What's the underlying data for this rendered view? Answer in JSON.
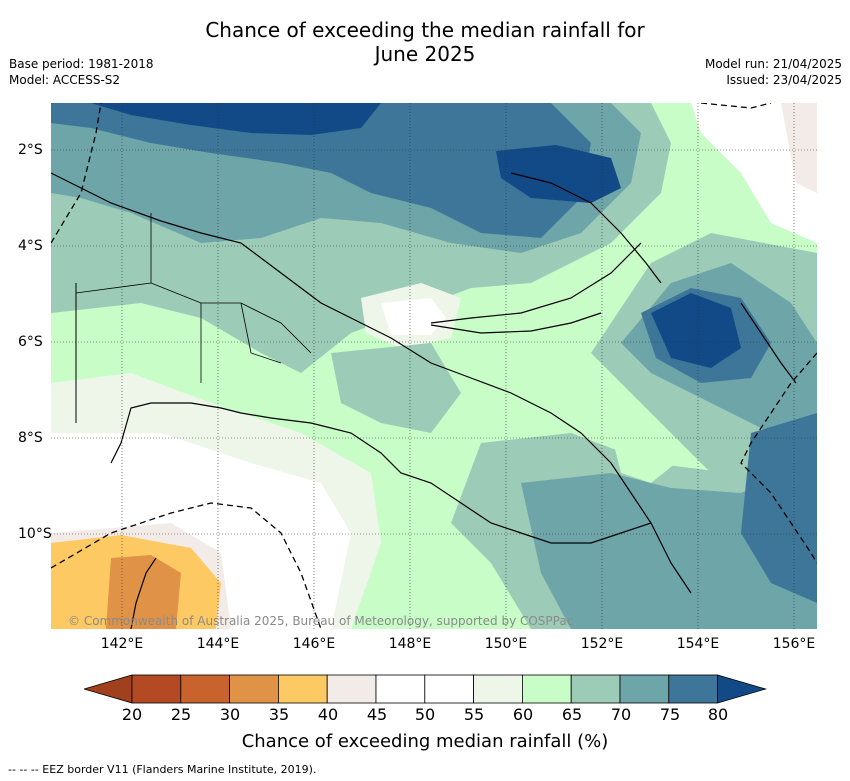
{
  "title": "Chance of exceeding the median rainfall for\nJune 2025",
  "meta_left": {
    "base_period": "Base period: 1981-2018",
    "model": "Model: ACCESS-S2"
  },
  "meta_right": {
    "model_run": "Model run: 21/04/2025",
    "issued": "Issued: 23/04/2025"
  },
  "map": {
    "copyright": "© Commonwealth of Australia 2025, Bureau of Meteorology, supported by COSPPac",
    "longitude_ticks": [
      "142°E",
      "144°E",
      "146°E",
      "148°E",
      "150°E",
      "152°E",
      "154°E",
      "156°E"
    ],
    "latitude_ticks": [
      "2°S",
      "4°S",
      "6°S",
      "8°S",
      "10°S"
    ]
  },
  "colorbar": {
    "label": "Chance of exceeding median rainfall (%)",
    "ticks": [
      "20",
      "25",
      "30",
      "35",
      "40",
      "45",
      "50",
      "55",
      "60",
      "65",
      "70",
      "75",
      "80"
    ],
    "bins": [
      {
        "range": "<20",
        "color": "#a0401c"
      },
      {
        "range": "20-25",
        "color": "#b34a23"
      },
      {
        "range": "25-30",
        "color": "#c9632d"
      },
      {
        "range": "30-35",
        "color": "#e09347"
      },
      {
        "range": "35-40",
        "color": "#fdc962"
      },
      {
        "range": "40-45",
        "color": "#f2ebe7"
      },
      {
        "range": "45-50",
        "color": "#ffffff"
      },
      {
        "range": "50-55",
        "color": "#ffffff"
      },
      {
        "range": "55-60",
        "color": "#eef6ea"
      },
      {
        "range": "60-65",
        "color": "#c8fdc8"
      },
      {
        "range": "65-70",
        "color": "#9ccbb7"
      },
      {
        "range": "70-75",
        "color": "#6ea5a8"
      },
      {
        "range": "75-80",
        "color": "#3e7699"
      },
      {
        "range": ">80",
        "color": "#114a86"
      }
    ]
  },
  "eez_note": "--  --  -- EEZ border V11 (Flanders Marine Institute, 2019)."
}
